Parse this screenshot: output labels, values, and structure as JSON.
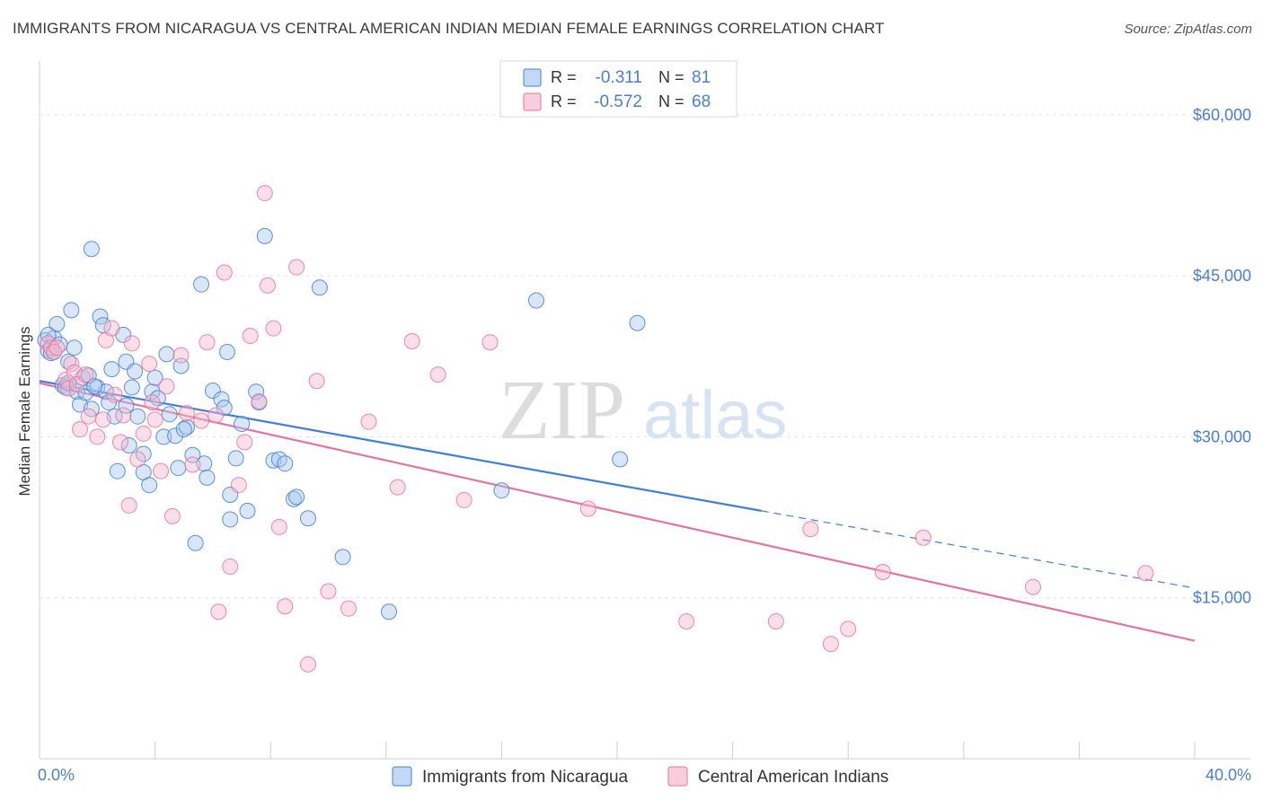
{
  "title": "IMMIGRANTS FROM NICARAGUA VS CENTRAL AMERICAN INDIAN MEDIAN FEMALE EARNINGS CORRELATION CHART",
  "source": "Source: ZipAtlas.com",
  "watermark": {
    "zip": "ZIP",
    "atlas": "atlas"
  },
  "legend_box": {
    "rows": [
      {
        "r_label": "R =",
        "r_value": "-0.311",
        "n_label": "N =",
        "n_value": "81"
      },
      {
        "r_label": "R =",
        "r_value": "-0.572",
        "n_label": "N =",
        "n_value": "68"
      }
    ]
  },
  "bottom_legend": [
    "Immigrants from Nicaragua",
    "Central American Indians"
  ],
  "chart_data": {
    "type": "scatter",
    "xlabel": "",
    "ylabel": "Median Female Earnings",
    "xlim": [
      0,
      40
    ],
    "ylim": [
      0,
      64000
    ],
    "x_tick_labels": [
      "0.0%",
      "40.0%"
    ],
    "y_ticks": [
      15000,
      30000,
      45000,
      60000
    ],
    "y_tick_labels": [
      "$15,000",
      "$30,000",
      "$45,000",
      "$60,000"
    ],
    "grid": "horizontal dashed",
    "colors": {
      "series1": "#3f7fd8",
      "series2": "#e8739a",
      "series1_fill": "#a9c8f0",
      "series2_fill": "#f5b9cd",
      "tick_text": "#4a7fcf"
    },
    "series": [
      {
        "name": "Immigrants from Nicaragua",
        "points": [
          [
            0.2,
            39000
          ],
          [
            0.3,
            38000
          ],
          [
            0.4,
            37800
          ],
          [
            0.5,
            39200
          ],
          [
            0.6,
            40500
          ],
          [
            0.7,
            38600
          ],
          [
            0.8,
            34800
          ],
          [
            0.9,
            34600
          ],
          [
            1.0,
            35000
          ],
          [
            1.0,
            37000
          ],
          [
            1.1,
            41800
          ],
          [
            1.2,
            38300
          ],
          [
            1.3,
            34200
          ],
          [
            1.4,
            33000
          ],
          [
            1.5,
            35500
          ],
          [
            1.6,
            34100
          ],
          [
            1.7,
            35700
          ],
          [
            1.8,
            32600
          ],
          [
            1.8,
            47500
          ],
          [
            2.0,
            34600
          ],
          [
            2.1,
            41200
          ],
          [
            2.2,
            40400
          ],
          [
            2.3,
            34200
          ],
          [
            2.4,
            33200
          ],
          [
            2.5,
            36300
          ],
          [
            2.6,
            31900
          ],
          [
            2.7,
            26800
          ],
          [
            2.9,
            39500
          ],
          [
            3.0,
            37000
          ],
          [
            3.1,
            29200
          ],
          [
            3.2,
            34600
          ],
          [
            3.3,
            36100
          ],
          [
            3.4,
            31900
          ],
          [
            3.6,
            26700
          ],
          [
            3.6,
            28400
          ],
          [
            3.8,
            25500
          ],
          [
            3.9,
            34200
          ],
          [
            4.0,
            35500
          ],
          [
            4.1,
            33600
          ],
          [
            4.3,
            30000
          ],
          [
            4.4,
            37700
          ],
          [
            4.5,
            32100
          ],
          [
            4.7,
            30100
          ],
          [
            4.8,
            27100
          ],
          [
            4.9,
            36600
          ],
          [
            5.1,
            30900
          ],
          [
            5.3,
            28300
          ],
          [
            5.4,
            20100
          ],
          [
            5.6,
            44200
          ],
          [
            5.7,
            27500
          ],
          [
            5.8,
            26200
          ],
          [
            6.0,
            34300
          ],
          [
            6.3,
            33500
          ],
          [
            6.4,
            32700
          ],
          [
            6.5,
            37900
          ],
          [
            6.6,
            24600
          ],
          [
            6.6,
            22300
          ],
          [
            6.8,
            28000
          ],
          [
            7.0,
            31200
          ],
          [
            7.2,
            23100
          ],
          [
            7.5,
            34200
          ],
          [
            7.6,
            33200
          ],
          [
            7.8,
            48700
          ],
          [
            8.1,
            27800
          ],
          [
            8.3,
            27900
          ],
          [
            8.5,
            27500
          ],
          [
            8.8,
            24200
          ],
          [
            8.9,
            24400
          ],
          [
            9.3,
            22400
          ],
          [
            9.7,
            43900
          ],
          [
            10.5,
            18800
          ],
          [
            12.1,
            13700
          ],
          [
            16.0,
            25000
          ],
          [
            17.2,
            42700
          ],
          [
            20.1,
            27900
          ],
          [
            20.7,
            40600
          ],
          [
            0.3,
            39500
          ],
          [
            0.5,
            37900
          ],
          [
            1.9,
            34700
          ],
          [
            3.0,
            32900
          ],
          [
            5.0,
            30700
          ]
        ]
      },
      {
        "name": "Central American Indians",
        "points": [
          [
            0.3,
            38700
          ],
          [
            0.4,
            38300
          ],
          [
            0.5,
            37900
          ],
          [
            0.6,
            38300
          ],
          [
            0.9,
            35300
          ],
          [
            1.0,
            34500
          ],
          [
            1.1,
            36800
          ],
          [
            1.2,
            36000
          ],
          [
            1.3,
            34900
          ],
          [
            1.4,
            30700
          ],
          [
            1.6,
            35800
          ],
          [
            1.7,
            31900
          ],
          [
            2.0,
            30000
          ],
          [
            2.2,
            31600
          ],
          [
            2.3,
            39000
          ],
          [
            2.5,
            40100
          ],
          [
            2.6,
            33900
          ],
          [
            2.8,
            29500
          ],
          [
            2.9,
            32000
          ],
          [
            3.1,
            23600
          ],
          [
            3.2,
            38700
          ],
          [
            3.4,
            27900
          ],
          [
            3.6,
            30300
          ],
          [
            3.8,
            36800
          ],
          [
            3.9,
            33200
          ],
          [
            4.0,
            31600
          ],
          [
            4.2,
            26800
          ],
          [
            4.4,
            34700
          ],
          [
            4.6,
            22600
          ],
          [
            4.9,
            37600
          ],
          [
            5.1,
            32200
          ],
          [
            5.3,
            27400
          ],
          [
            5.6,
            31500
          ],
          [
            5.8,
            38800
          ],
          [
            6.1,
            32000
          ],
          [
            6.2,
            13700
          ],
          [
            6.4,
            45300
          ],
          [
            6.6,
            17900
          ],
          [
            6.9,
            25500
          ],
          [
            7.1,
            29500
          ],
          [
            7.3,
            39400
          ],
          [
            7.6,
            33300
          ],
          [
            7.8,
            52700
          ],
          [
            7.9,
            44100
          ],
          [
            8.1,
            40100
          ],
          [
            8.3,
            21600
          ],
          [
            8.5,
            14200
          ],
          [
            8.9,
            45800
          ],
          [
            9.3,
            8800
          ],
          [
            9.6,
            35200
          ],
          [
            10.0,
            15600
          ],
          [
            10.7,
            14000
          ],
          [
            11.4,
            31400
          ],
          [
            12.4,
            25300
          ],
          [
            12.9,
            38900
          ],
          [
            13.8,
            35800
          ],
          [
            14.7,
            24100
          ],
          [
            15.6,
            38800
          ],
          [
            19.0,
            23300
          ],
          [
            22.4,
            12800
          ],
          [
            25.5,
            12800
          ],
          [
            26.7,
            21400
          ],
          [
            27.4,
            10700
          ],
          [
            28.0,
            12100
          ],
          [
            29.2,
            17400
          ],
          [
            30.6,
            20600
          ],
          [
            34.4,
            16000
          ],
          [
            38.3,
            17300
          ]
        ]
      }
    ],
    "trend_lines": [
      {
        "series": "Immigrants from Nicaragua",
        "x_start": 0.0,
        "y_start": 35200,
        "x_solid_end": 25.0,
        "y_solid_end": 23100,
        "x_end": 40.0,
        "y_end": 15900
      },
      {
        "series": "Central American Indians",
        "x_start": 0.0,
        "y_start": 35000,
        "x_end": 40.0,
        "y_end": 11000
      }
    ]
  }
}
